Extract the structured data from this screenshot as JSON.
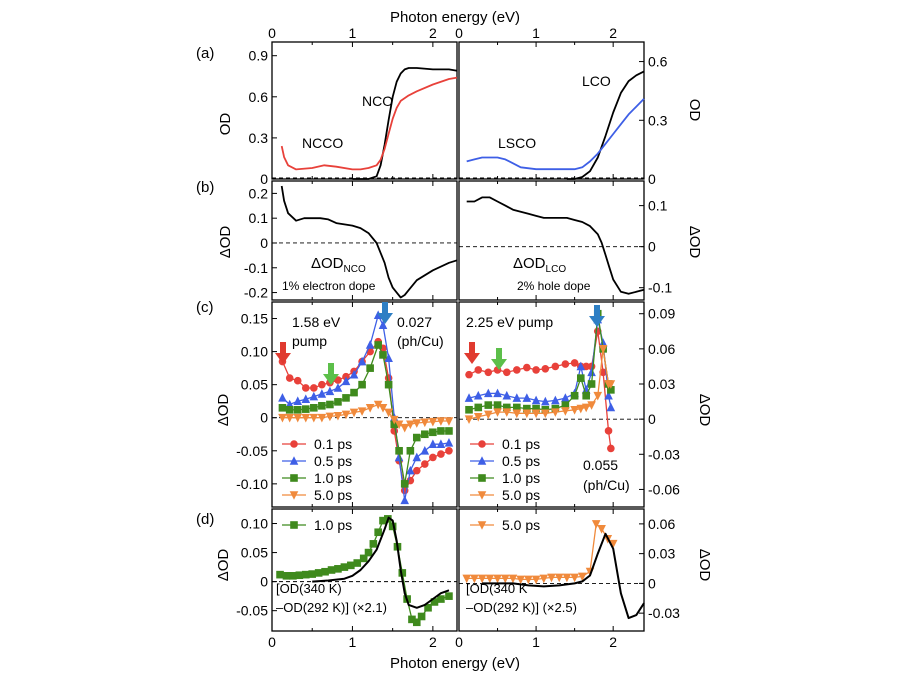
{
  "figure": {
    "top_xlabel": "Photon energy (eV)",
    "bottom_xlabel": "Photon energy (eV)",
    "x_ticks": [
      "0",
      "1",
      "2"
    ]
  },
  "panels": {
    "a": {
      "label": "(a)",
      "left": {
        "ylabel": "OD",
        "ylim": [
          0,
          1.0
        ],
        "yticks": [
          "0",
          "0.3",
          "0.6",
          "0.9"
        ],
        "ann_nco": "NCO",
        "ann_ncco": "NCCO"
      },
      "right": {
        "ylabel": "OD",
        "ylim": [
          0,
          0.7
        ],
        "yticks": [
          "0",
          "0.3",
          "0.6"
        ],
        "ann_lco": "LCO",
        "ann_lsco": "LSCO"
      }
    },
    "b": {
      "label": "(b)",
      "left": {
        "ylabel": "ΔOD",
        "ylim": [
          -0.23,
          0.25
        ],
        "yticks": [
          "0.2",
          "0.1",
          "0",
          "-0.1",
          "-0.2"
        ],
        "ann_main": "ΔOD",
        "ann_sub": "NCO",
        "ann_dope": "1% electron dope"
      },
      "right": {
        "ylabel": "ΔOD",
        "ylim": [
          -0.13,
          0.16
        ],
        "yticks": [
          "0.1",
          "0",
          "-0.1"
        ],
        "ann_main": "ΔOD",
        "ann_sub": "LCO",
        "ann_dope": "2% hole dope"
      }
    },
    "c": {
      "label": "(c)",
      "left": {
        "ylabel": "ΔOD",
        "ylim": [
          -0.135,
          0.175
        ],
        "yticks": [
          "0.15",
          "0.10",
          "0.05",
          "0",
          "-0.05",
          "-0.10"
        ],
        "pump_line1": "1.58 eV",
        "pump_line2": "pump",
        "fluence_value": "0.027",
        "fluence_unit": "(ph/Cu)"
      },
      "right": {
        "ylabel": "ΔOD",
        "ylim": [
          -0.075,
          0.1
        ],
        "yticks": [
          "0.09",
          "0.06",
          "0.03",
          "0",
          "-0.03",
          "-0.06"
        ],
        "pump_label": "2.25 eV pump",
        "fluence_value": "0.055",
        "fluence_unit": "(ph/Cu)"
      },
      "legend": [
        "0.1 ps",
        "0.5 ps",
        "1.0 ps",
        "5.0 ps"
      ]
    },
    "d": {
      "label": "(d)",
      "left": {
        "ylabel": "ΔOD",
        "ylim": [
          -0.085,
          0.125
        ],
        "yticks": [
          "0.10",
          "0.05",
          "0",
          "-0.05"
        ],
        "legend": "1.0 ps",
        "note_line1": "[OD(340 K)",
        "note_line2": "–OD(292 K)] (×2.1)"
      },
      "right": {
        "ylabel": "ΔOD",
        "ylim": [
          -0.048,
          0.075
        ],
        "yticks": [
          "0.06",
          "0.03",
          "0",
          "-0.03"
        ],
        "legend": "5.0 ps",
        "note_line1": "[OD(340 K",
        "note_line2": "–OD(292 K)] (×2.5)"
      }
    }
  },
  "colors": {
    "red": "#e8413a",
    "blue": "#3e5fe6",
    "green": "#3f8a1d",
    "orange": "#f08a3c",
    "black": "#000000",
    "arrow_red": "#e03a2f",
    "arrow_green": "#5cbf4a",
    "arrow_blue": "#2e7fc4"
  },
  "chart_data": [
    {
      "id": "a-left",
      "type": "line",
      "xlabel": "Photon energy (eV)",
      "ylabel": "OD",
      "xlim": [
        0,
        2.3
      ],
      "ylim": [
        0,
        1.0
      ],
      "series": [
        {
          "name": "NCO",
          "color": "#000000",
          "x": [
            1.0,
            1.1,
            1.2,
            1.3,
            1.35,
            1.4,
            1.45,
            1.5,
            1.55,
            1.6,
            1.65,
            1.7,
            1.8,
            2.0,
            2.2,
            2.3
          ],
          "y": [
            0,
            0,
            0,
            0.02,
            0.1,
            0.25,
            0.43,
            0.6,
            0.71,
            0.77,
            0.8,
            0.81,
            0.81,
            0.8,
            0.8,
            0.79
          ]
        },
        {
          "name": "NCCO",
          "color": "#e8413a",
          "x": [
            0.12,
            0.15,
            0.2,
            0.3,
            0.5,
            0.65,
            0.8,
            1.0,
            1.1,
            1.2,
            1.3,
            1.35,
            1.4,
            1.45,
            1.5,
            1.55,
            1.6,
            1.7,
            1.8,
            2.0,
            2.2,
            2.3
          ],
          "y": [
            0.24,
            0.16,
            0.1,
            0.07,
            0.08,
            0.1,
            0.09,
            0.07,
            0.07,
            0.08,
            0.1,
            0.14,
            0.22,
            0.33,
            0.44,
            0.52,
            0.57,
            0.61,
            0.64,
            0.69,
            0.73,
            0.74
          ]
        }
      ]
    },
    {
      "id": "a-right",
      "type": "line",
      "xlabel": "Photon energy (eV)",
      "ylabel": "OD",
      "xlim": [
        0,
        2.4
      ],
      "ylim": [
        0,
        0.7
      ],
      "series": [
        {
          "name": "LCO",
          "color": "#000000",
          "x": [
            1.4,
            1.5,
            1.6,
            1.7,
            1.8,
            1.9,
            2.0,
            2.1,
            2.2,
            2.3,
            2.4
          ],
          "y": [
            0,
            0,
            0.01,
            0.04,
            0.11,
            0.22,
            0.34,
            0.44,
            0.5,
            0.53,
            0.55
          ]
        },
        {
          "name": "LSCO",
          "color": "#3e5fe6",
          "x": [
            0.1,
            0.2,
            0.3,
            0.4,
            0.5,
            0.6,
            0.7,
            0.8,
            1.0,
            1.2,
            1.4,
            1.5,
            1.6,
            1.7,
            1.8,
            1.9,
            2.0,
            2.1,
            2.2,
            2.3,
            2.4
          ],
          "y": [
            0.09,
            0.1,
            0.11,
            0.11,
            0.11,
            0.1,
            0.08,
            0.06,
            0.05,
            0.05,
            0.05,
            0.05,
            0.06,
            0.09,
            0.13,
            0.18,
            0.23,
            0.28,
            0.33,
            0.37,
            0.41
          ]
        }
      ]
    },
    {
      "id": "b-left",
      "type": "line",
      "xlabel": "Photon energy (eV)",
      "ylabel": "ΔOD",
      "xlim": [
        0,
        2.3
      ],
      "ylim": [
        -0.23,
        0.25
      ],
      "series": [
        {
          "name": "ΔOD NCO",
          "color": "#000000",
          "x": [
            0.12,
            0.15,
            0.2,
            0.3,
            0.4,
            0.5,
            0.6,
            0.7,
            0.8,
            0.9,
            1.0,
            1.1,
            1.2,
            1.3,
            1.35,
            1.4,
            1.45,
            1.5,
            1.55,
            1.6,
            1.65,
            1.7,
            1.8,
            2.0,
            2.2,
            2.3
          ],
          "y": [
            0.23,
            0.17,
            0.12,
            0.09,
            0.1,
            0.1,
            0.1,
            0.095,
            0.08,
            0.075,
            0.07,
            0.06,
            0.04,
            0.0,
            -0.04,
            -0.08,
            -0.14,
            -0.18,
            -0.2,
            -0.22,
            -0.21,
            -0.19,
            -0.15,
            -0.11,
            -0.08,
            -0.07
          ]
        }
      ]
    },
    {
      "id": "b-right",
      "type": "line",
      "xlabel": "Photon energy (eV)",
      "ylabel": "ΔOD",
      "xlim": [
        0,
        2.4
      ],
      "ylim": [
        -0.13,
        0.16
      ],
      "series": [
        {
          "name": "ΔOD LCO",
          "color": "#000000",
          "x": [
            0.1,
            0.2,
            0.3,
            0.4,
            0.5,
            0.6,
            0.7,
            0.8,
            0.9,
            1.0,
            1.1,
            1.2,
            1.3,
            1.4,
            1.5,
            1.6,
            1.7,
            1.8,
            1.85,
            1.9,
            1.95,
            2.0,
            2.1,
            2.2,
            2.3,
            2.4
          ],
          "y": [
            0.11,
            0.11,
            0.12,
            0.12,
            0.11,
            0.1,
            0.09,
            0.085,
            0.08,
            0.075,
            0.07,
            0.07,
            0.07,
            0.07,
            0.065,
            0.06,
            0.05,
            0.03,
            0.01,
            -0.02,
            -0.05,
            -0.08,
            -0.11,
            -0.115,
            -0.11,
            -0.105
          ]
        }
      ]
    },
    {
      "id": "c-left",
      "type": "scatter-line",
      "xlabel": "Photon energy (eV)",
      "ylabel": "ΔOD",
      "xlim": [
        0,
        2.3
      ],
      "ylim": [
        -0.135,
        0.175
      ],
      "x": [
        0.13,
        0.22,
        0.32,
        0.42,
        0.52,
        0.62,
        0.72,
        0.82,
        0.92,
        1.02,
        1.12,
        1.22,
        1.32,
        1.38,
        1.45,
        1.52,
        1.58,
        1.65,
        1.72,
        1.8,
        1.9,
        2.0,
        2.1,
        2.2
      ],
      "series": [
        {
          "name": "0.1 ps",
          "color": "#e8413a",
          "marker": "circle",
          "values": [
            0.085,
            0.06,
            0.056,
            0.045,
            0.045,
            0.05,
            0.053,
            0.057,
            0.062,
            0.07,
            0.085,
            0.1,
            0.115,
            0.105,
            0.06,
            -0.02,
            -0.065,
            -0.11,
            -0.095,
            -0.08,
            -0.07,
            -0.06,
            -0.055,
            -0.05
          ]
        },
        {
          "name": "0.5 ps",
          "color": "#3e5fe6",
          "marker": "triangle",
          "values": [
            0.03,
            0.02,
            0.025,
            0.028,
            0.032,
            0.036,
            0.04,
            0.045,
            0.055,
            0.065,
            0.085,
            0.11,
            0.155,
            0.14,
            0.09,
            0.0,
            -0.06,
            -0.125,
            -0.08,
            -0.06,
            -0.05,
            -0.04,
            -0.04,
            -0.038
          ]
        },
        {
          "name": "1.0 ps",
          "color": "#3f8a1d",
          "marker": "square",
          "values": [
            0.015,
            0.012,
            0.012,
            0.013,
            0.015,
            0.018,
            0.02,
            0.024,
            0.03,
            0.038,
            0.05,
            0.075,
            0.11,
            0.095,
            0.05,
            -0.01,
            -0.05,
            -0.1,
            -0.05,
            -0.03,
            -0.025,
            -0.022,
            -0.02,
            -0.02
          ]
        },
        {
          "name": "5.0 ps",
          "color": "#f08a3c",
          "marker": "triangle-down",
          "values": [
            0.0,
            0.0,
            0.0,
            0.0,
            0.0,
            0.0,
            0.002,
            0.003,
            0.005,
            0.008,
            0.01,
            0.015,
            0.02,
            0.015,
            0.008,
            -0.003,
            -0.01,
            -0.015,
            -0.01,
            -0.008,
            -0.007,
            -0.006,
            -0.005,
            -0.005
          ]
        }
      ]
    },
    {
      "id": "c-right",
      "type": "scatter-line",
      "xlabel": "Photon energy (eV)",
      "ylabel": "ΔOD",
      "xlim": [
        0,
        2.4
      ],
      "ylim": [
        -0.075,
        0.1
      ],
      "x": [
        0.13,
        0.25,
        0.38,
        0.5,
        0.62,
        0.75,
        0.88,
        1.0,
        1.12,
        1.25,
        1.38,
        1.5,
        1.58,
        1.65,
        1.72,
        1.8,
        1.87,
        1.94,
        1.97
      ],
      "series": [
        {
          "name": "0.1 ps",
          "color": "#e8413a",
          "marker": "circle",
          "values": [
            0.038,
            0.042,
            0.04,
            0.042,
            0.04,
            0.042,
            0.044,
            0.042,
            0.043,
            0.045,
            0.047,
            0.048,
            0.045,
            0.045,
            0.045,
            0.075,
            0.04,
            -0.01,
            -0.025
          ]
        },
        {
          "name": "0.5 ps",
          "color": "#3e5fe6",
          "marker": "triangle",
          "values": [
            0.018,
            0.02,
            0.022,
            0.022,
            0.02,
            0.018,
            0.018,
            0.016,
            0.015,
            0.016,
            0.018,
            0.022,
            0.045,
            0.025,
            0.04,
            0.085,
            0.065,
            0.02,
            0.01
          ]
        },
        {
          "name": "1.0 ps",
          "color": "#3f8a1d",
          "marker": "square",
          "values": [
            0.008,
            0.01,
            0.012,
            0.012,
            0.01,
            0.01,
            0.009,
            0.009,
            0.008,
            0.009,
            0.012,
            0.02,
            0.035,
            0.02,
            0.03,
            0.09,
            0.06,
            0.03,
            0.025
          ]
        },
        {
          "name": "5.0 ps",
          "color": "#f08a3c",
          "marker": "triangle-down",
          "values": [
            0.0,
            0.002,
            0.004,
            0.006,
            0.006,
            0.005,
            0.005,
            0.005,
            0.005,
            0.006,
            0.007,
            0.008,
            0.009,
            0.01,
            0.012,
            0.02,
            0.06,
            0.03,
            0.03
          ]
        }
      ]
    },
    {
      "id": "d-left",
      "type": "line+scatter",
      "xlabel": "Photon energy (eV)",
      "ylabel": "ΔOD",
      "xlim": [
        0,
        2.3
      ],
      "ylim": [
        -0.085,
        0.125
      ],
      "series": [
        {
          "name": "1.0 ps",
          "color": "#3f8a1d",
          "marker": "square",
          "x": [
            0.1,
            0.18,
            0.26,
            0.34,
            0.42,
            0.5,
            0.58,
            0.66,
            0.74,
            0.82,
            0.9,
            0.98,
            1.06,
            1.14,
            1.2,
            1.26,
            1.32,
            1.38,
            1.44,
            1.5,
            1.56,
            1.62,
            1.68,
            1.74,
            1.8,
            1.86,
            1.94,
            2.02,
            2.1,
            2.2
          ],
          "y": [
            0.012,
            0.01,
            0.01,
            0.011,
            0.012,
            0.013,
            0.015,
            0.017,
            0.02,
            0.022,
            0.025,
            0.028,
            0.032,
            0.04,
            0.05,
            0.065,
            0.085,
            0.105,
            0.108,
            0.095,
            0.06,
            0.015,
            -0.03,
            -0.065,
            -0.07,
            -0.06,
            -0.045,
            -0.035,
            -0.03,
            -0.025
          ]
        },
        {
          "name": "[OD(340 K)–OD(292 K)] (×2.1)",
          "color": "#000000",
          "x": [
            0.5,
            0.7,
            0.9,
            1.0,
            1.1,
            1.2,
            1.3,
            1.4,
            1.45,
            1.5,
            1.55,
            1.6,
            1.65,
            1.7,
            1.8,
            1.9,
            2.0,
            2.1,
            2.2
          ],
          "y": [
            0.0,
            0.002,
            0.005,
            0.01,
            0.02,
            0.035,
            0.055,
            0.09,
            0.11,
            0.105,
            0.07,
            0.02,
            -0.02,
            -0.04,
            -0.045,
            -0.04,
            -0.03,
            -0.02,
            -0.015
          ]
        }
      ]
    },
    {
      "id": "d-right",
      "type": "line+scatter",
      "xlabel": "Photon energy (eV)",
      "ylabel": "ΔOD",
      "xlim": [
        0,
        2.4
      ],
      "ylim": [
        -0.048,
        0.075
      ],
      "series": [
        {
          "name": "5.0 ps",
          "color": "#f08a3c",
          "marker": "triangle-down",
          "x": [
            0.1,
            0.2,
            0.3,
            0.4,
            0.5,
            0.6,
            0.7,
            0.8,
            0.9,
            1.0,
            1.1,
            1.2,
            1.3,
            1.4,
            1.5,
            1.6,
            1.7,
            1.78,
            1.85,
            1.93,
            2.0
          ],
          "y": [
            0.005,
            0.005,
            0.005,
            0.005,
            0.005,
            0.005,
            0.005,
            0.004,
            0.004,
            0.004,
            0.005,
            0.006,
            0.006,
            0.006,
            0.006,
            0.007,
            0.012,
            0.06,
            0.055,
            0.045,
            0.04
          ]
        },
        {
          "name": "[OD(340 K–OD(292 K)] (×2.5)",
          "color": "#000000",
          "x": [
            0.3,
            0.5,
            0.7,
            0.9,
            1.1,
            1.3,
            1.5,
            1.6,
            1.7,
            1.8,
            1.9,
            2.0,
            2.1,
            2.2,
            2.3,
            2.4
          ],
          "y": [
            0.0,
            0.0,
            0.0,
            -0.002,
            -0.003,
            -0.002,
            0.0,
            0.002,
            0.008,
            0.03,
            0.05,
            0.035,
            -0.01,
            -0.035,
            -0.032,
            -0.02
          ]
        }
      ]
    }
  ]
}
